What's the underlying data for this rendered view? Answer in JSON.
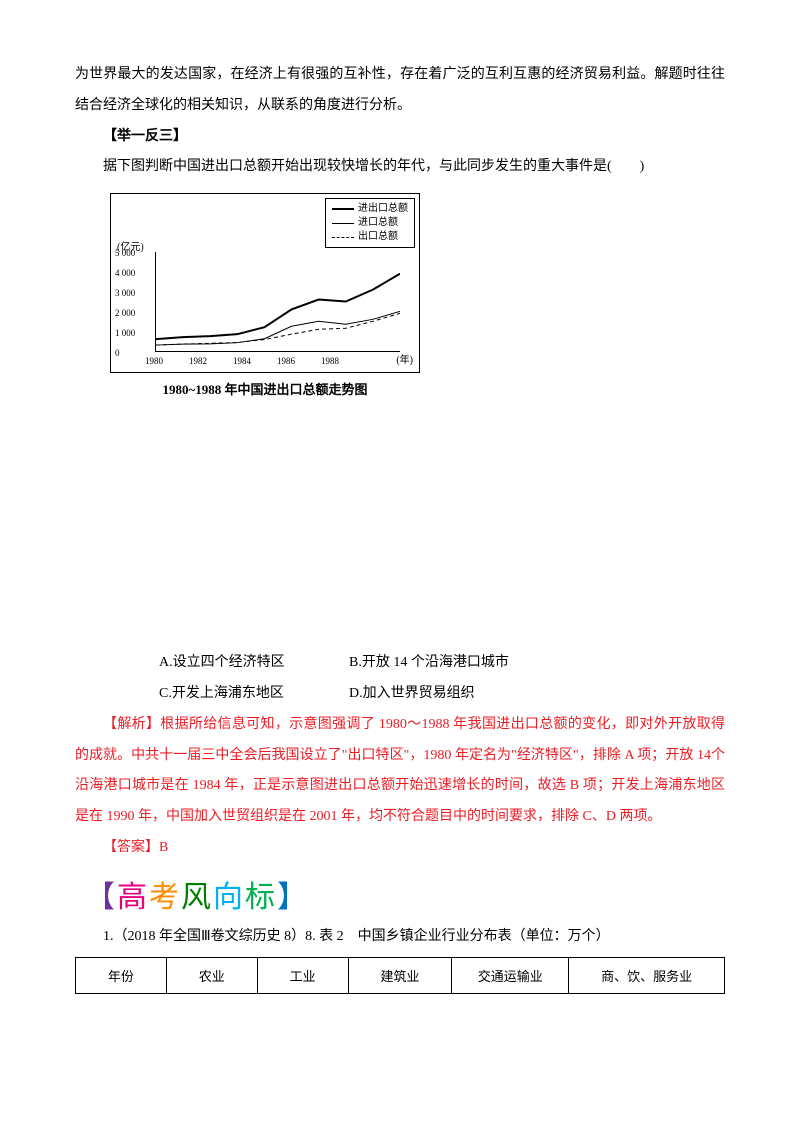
{
  "intro": {
    "line1": "为世界最大的发达国家，在经济上有很强的互补性，存在着广泛的互利互惠的经济贸易利益。解题时往往结合经济全球化的相关知识，从联系的角度进行分析。"
  },
  "section_heading": "【举一反三】",
  "question_text": "据下图判断中国进出口总额开始出现较快增长的年代，与此同步发生的重大事件是(　　)",
  "chart": {
    "type": "line",
    "y_unit": "(亿元)",
    "x_unit": "(年)",
    "ylim": [
      0,
      5000
    ],
    "ytick_step": 1000,
    "y_ticks": [
      "5 000",
      "4 000",
      "3 000",
      "2 000",
      "1 000",
      "0"
    ],
    "x_ticks": [
      "1980",
      "1982",
      "1984",
      "1986",
      "1988"
    ],
    "legends": [
      {
        "label": "进出口总额",
        "dash": "solid",
        "weight": 2
      },
      {
        "label": "进口总额",
        "dash": "solid",
        "weight": 1
      },
      {
        "label": "出口总额",
        "dash": "dashed",
        "weight": 1
      }
    ],
    "series": {
      "total": [
        600,
        700,
        750,
        850,
        1200,
        2100,
        2600,
        2500,
        3100,
        3900
      ],
      "import": [
        300,
        350,
        360,
        420,
        620,
        1250,
        1500,
        1350,
        1600,
        2000
      ],
      "export": [
        300,
        350,
        390,
        430,
        580,
        850,
        1100,
        1150,
        1500,
        1900
      ]
    },
    "caption": "1980~1988 年中国进出口总额走势图",
    "background_color": "#ffffff",
    "line_color": "#000000"
  },
  "options": {
    "a": "A.设立四个经济特区",
    "b": "B.开放 14 个沿海港口城市",
    "c": "C.开发上海浦东地区",
    "d": "D.加入世界贸易组织"
  },
  "analysis": {
    "label": "【解析】",
    "text": "根据所给信息可知，示意图强调了 1980～1988 年我国进出口总额的变化，即对外开放取得的成就。中共十一届三中全会后我国设立了\"出口特区\"，1980 年定名为\"经济特区\"，排除 A 项；开放 14个沿海港口城市是在 1984 年，正是示意图进出口总额开始迅速增长的时间，故选 B 项；开发上海浦东地区是在 1990 年，中国加入世贸组织是在 2001 年，均不符合题目中的时间要求，排除 C、D 两项。"
  },
  "answer": {
    "label": "【答案】",
    "value": "B"
  },
  "rainbow_heading": "高考风向标",
  "exam": {
    "prefix": "1.（2018 年全国Ⅲ卷文综历史 8）8. 表 2　中国乡镇企业行业分布表（单位：万个）",
    "table": {
      "columns": [
        "年份",
        "农业",
        "工业",
        "建筑业",
        "交通运输业",
        "商、饮、服务业"
      ],
      "col_widths": [
        "14%",
        "14%",
        "14%",
        "16%",
        "18%",
        "24%"
      ]
    }
  },
  "colors": {
    "text": "#000000",
    "red": "#ed1c24",
    "background": "#ffffff"
  }
}
